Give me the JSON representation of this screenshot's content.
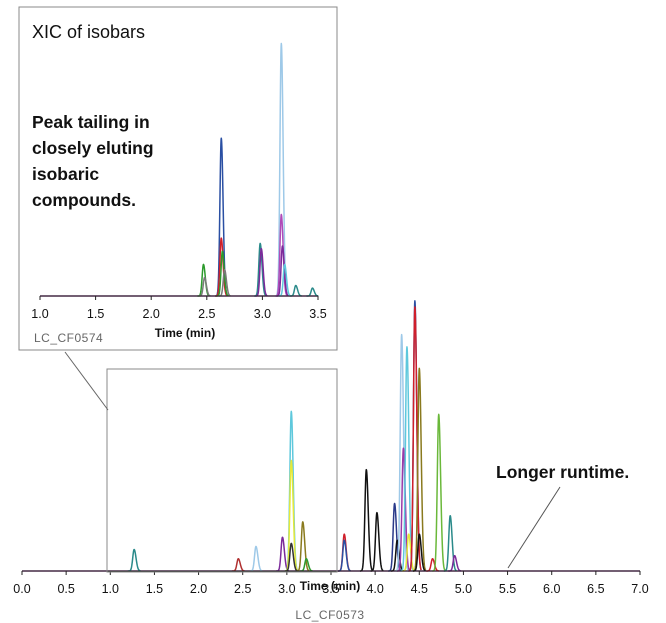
{
  "chart_data": [
    {
      "type": "line",
      "xlabel": "Time (min)",
      "xlim": [
        0.0,
        7.0
      ],
      "x_ticks": [
        "0.0",
        "0.5",
        "1.0",
        "1.5",
        "2.0",
        "2.5",
        "3.0",
        "3.5",
        "4.0",
        "4.5",
        "5.0",
        "5.5",
        "6.0",
        "6.5",
        "7.0"
      ],
      "code": "LC_CF0573",
      "annotation": "Longer runtime.",
      "peaks": [
        {
          "x": 1.27,
          "h": 0.07,
          "color": "#2a8a8a"
        },
        {
          "x": 2.45,
          "h": 0.04,
          "color": "#b03030"
        },
        {
          "x": 2.65,
          "h": 0.08,
          "color": "#9ec9e8"
        },
        {
          "x": 2.95,
          "h": 0.11,
          "color": "#7b2a9a"
        },
        {
          "x": 3.05,
          "h": 0.52,
          "color": "#5ec8dc"
        },
        {
          "x": 3.05,
          "h": 0.36,
          "color": "#e6e93a"
        },
        {
          "x": 3.05,
          "h": 0.09,
          "color": "#333333"
        },
        {
          "x": 3.18,
          "h": 0.16,
          "color": "#8a7a1e"
        },
        {
          "x": 3.22,
          "h": 0.04,
          "color": "#2c9a2c"
        },
        {
          "x": 3.65,
          "h": 0.12,
          "color": "#d01f2b"
        },
        {
          "x": 3.65,
          "h": 0.1,
          "color": "#2a4fa3"
        },
        {
          "x": 3.9,
          "h": 0.33,
          "color": "#111111"
        },
        {
          "x": 4.02,
          "h": 0.19,
          "color": "#111111"
        },
        {
          "x": 4.22,
          "h": 0.22,
          "color": "#2a3a8a"
        },
        {
          "x": 4.25,
          "h": 0.1,
          "color": "#111111"
        },
        {
          "x": 4.3,
          "h": 0.77,
          "color": "#9ec9e8"
        },
        {
          "x": 4.32,
          "h": 0.4,
          "color": "#9a3aa8"
        },
        {
          "x": 4.36,
          "h": 0.73,
          "color": "#5ec8dc"
        },
        {
          "x": 4.38,
          "h": 0.12,
          "color": "#e6e93a"
        },
        {
          "x": 4.45,
          "h": 0.88,
          "color": "#2a4fa3"
        },
        {
          "x": 4.45,
          "h": 0.86,
          "color": "#d01f2b"
        },
        {
          "x": 4.5,
          "h": 0.66,
          "color": "#8a7a1e"
        },
        {
          "x": 4.5,
          "h": 0.12,
          "color": "#111111"
        },
        {
          "x": 4.65,
          "h": 0.04,
          "color": "#d01f2b"
        },
        {
          "x": 4.72,
          "h": 0.51,
          "color": "#6ab83a"
        },
        {
          "x": 4.85,
          "h": 0.18,
          "color": "#2a8a8a"
        },
        {
          "x": 4.9,
          "h": 0.05,
          "color": "#7b2a9a"
        }
      ]
    },
    {
      "type": "line",
      "title": "XIC of isobars",
      "xlabel": "Time (min)",
      "xlim": [
        1.0,
        3.5
      ],
      "x_ticks": [
        "1.0",
        "1.5",
        "2.0",
        "2.5",
        "3.0",
        "3.5"
      ],
      "code": "LC_CF0574",
      "annotation": [
        "Peak tailing in",
        "closely eluting",
        "isobaric",
        "compounds."
      ],
      "peaks": [
        {
          "x": 2.47,
          "h": 0.12,
          "color": "#2c9a2c"
        },
        {
          "x": 2.48,
          "h": 0.07,
          "color": "#7a7a7a"
        },
        {
          "x": 2.63,
          "h": 0.6,
          "color": "#2a4fa3"
        },
        {
          "x": 2.63,
          "h": 0.22,
          "color": "#d01f2b"
        },
        {
          "x": 2.64,
          "h": 0.17,
          "color": "#2c9a2c"
        },
        {
          "x": 2.66,
          "h": 0.1,
          "color": "#7a7a7a"
        },
        {
          "x": 2.98,
          "h": 0.2,
          "color": "#2a8a8a"
        },
        {
          "x": 2.99,
          "h": 0.18,
          "color": "#7b2a9a"
        },
        {
          "x": 3.17,
          "h": 0.96,
          "color": "#9ec9e8"
        },
        {
          "x": 3.17,
          "h": 0.31,
          "color": "#b04ab8"
        },
        {
          "x": 3.18,
          "h": 0.19,
          "color": "#7b2a9a"
        },
        {
          "x": 3.2,
          "h": 0.12,
          "color": "#5ec8dc"
        },
        {
          "x": 3.3,
          "h": 0.04,
          "color": "#2a8a8a"
        },
        {
          "x": 3.45,
          "h": 0.03,
          "color": "#2a8a8a"
        }
      ]
    }
  ]
}
